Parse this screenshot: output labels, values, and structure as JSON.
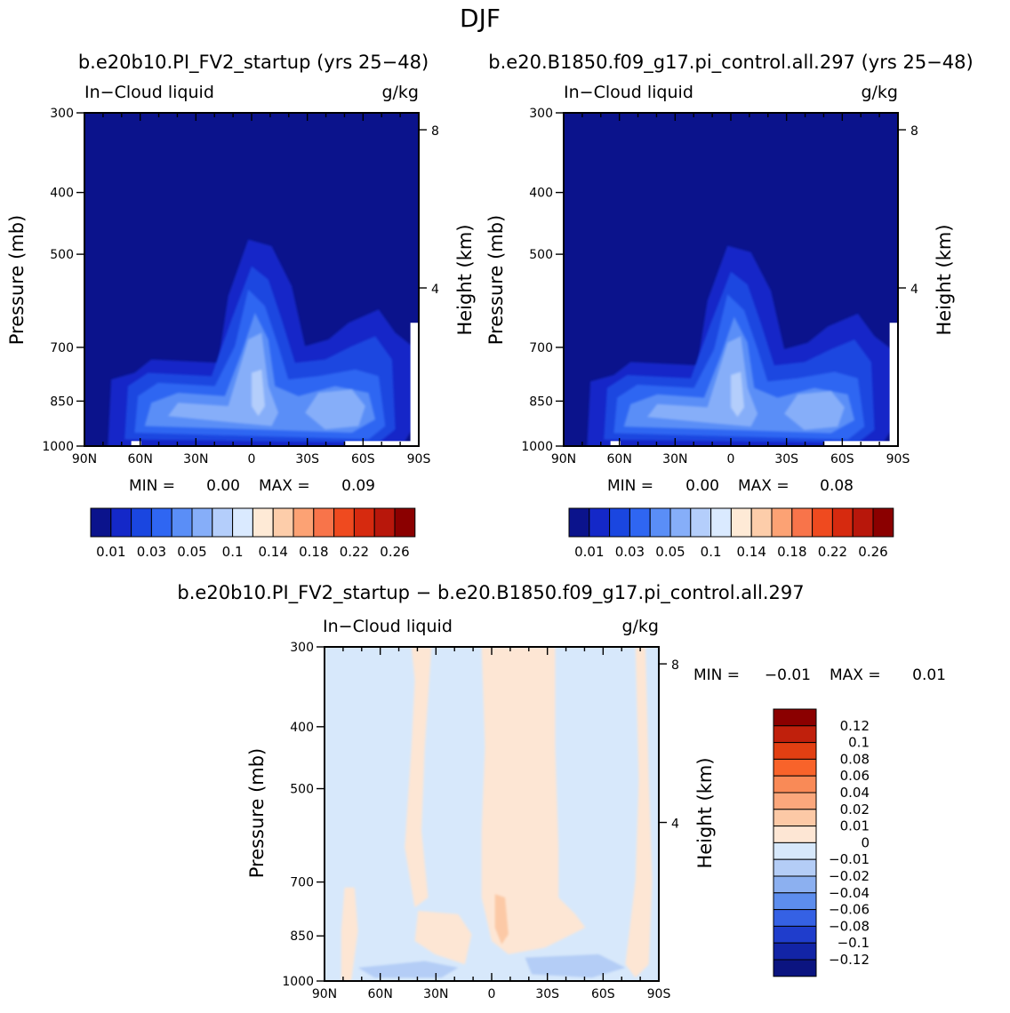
{
  "figure": {
    "season_title": "DJF",
    "diff_panel_title": "b.e20b10.PI_FV2_startup  −  b.e20.B1850.f09_g17.pi_control.all.297"
  },
  "chart_data": [
    {
      "type": "heatmap",
      "title": "b.e20b10.PI_FV2_startup (yrs 25−48)",
      "left_label": "In−Cloud liquid",
      "right_label": "g/kg",
      "xlabel": "",
      "ylabel": "Pressure (mb)",
      "ylabel_right": "Height (km)",
      "x_ticks": [
        "90N",
        "60N",
        "30N",
        "0",
        "30S",
        "60S",
        "90S"
      ],
      "y_ticks": [
        300,
        400,
        500,
        700,
        850,
        1000
      ],
      "y_ticks_right": [
        8,
        4
      ],
      "y_scale": "log",
      "ylim": [
        1000,
        300
      ],
      "xlim": [
        90,
        -90
      ],
      "min_label": "MIN =",
      "min_value": "0.00",
      "max_label": "MAX =",
      "max_value": "0.09",
      "colorbar_labels": [
        "0.01",
        "0.03",
        "0.05",
        "0.1",
        "0.14",
        "0.18",
        "0.22",
        "0.26"
      ],
      "approx_max_value": 0.09
    },
    {
      "type": "heatmap",
      "title": "b.e20.B1850.f09_g17.pi_control.all.297 (yrs 25−48)",
      "left_label": "In−Cloud liquid",
      "right_label": "g/kg",
      "xlabel": "",
      "ylabel": "Pressure (mb)",
      "ylabel_right": "Height (km)",
      "x_ticks": [
        "90N",
        "60N",
        "30N",
        "0",
        "30S",
        "60S",
        "90S"
      ],
      "y_ticks": [
        300,
        400,
        500,
        700,
        850,
        1000
      ],
      "y_ticks_right": [
        8,
        4
      ],
      "y_scale": "log",
      "ylim": [
        1000,
        300
      ],
      "xlim": [
        90,
        -90
      ],
      "min_label": "MIN =",
      "min_value": "0.00",
      "max_label": "MAX =",
      "max_value": "0.08",
      "colorbar_labels": [
        "0.01",
        "0.03",
        "0.05",
        "0.1",
        "0.14",
        "0.18",
        "0.22",
        "0.26"
      ],
      "approx_max_value": 0.08
    },
    {
      "type": "heatmap",
      "title": "",
      "left_label": "In−Cloud liquid",
      "right_label": "g/kg",
      "xlabel": "",
      "ylabel": "Pressure (mb)",
      "ylabel_right": "Height (km)",
      "x_ticks": [
        "90N",
        "60N",
        "30N",
        "0",
        "30S",
        "60S",
        "90S"
      ],
      "y_ticks": [
        300,
        400,
        500,
        700,
        850,
        1000
      ],
      "y_ticks_right": [
        8,
        4
      ],
      "y_scale": "log",
      "ylim": [
        1000,
        300
      ],
      "xlim": [
        90,
        -90
      ],
      "min_label": "MIN =",
      "min_value": "−0.01",
      "max_label": "MAX =",
      "max_value": "0.01",
      "colorbar_labels": [
        "0.12",
        "0.1",
        "0.08",
        "0.06",
        "0.04",
        "0.02",
        "0.01",
        "0",
        "−0.01",
        "−0.02",
        "−0.04",
        "−0.06",
        "−0.08",
        "−0.1",
        "−0.12"
      ]
    }
  ],
  "colors": {
    "abs_scale": [
      "#0b138c",
      "#1428c8",
      "#1a46e0",
      "#2f66f2",
      "#5a8ef7",
      "#86aef9",
      "#b4cefb",
      "#daeaff",
      "#feead6",
      "#fdcdaa",
      "#fca274",
      "#f8744a",
      "#ef4a1f",
      "#d62a0f",
      "#b8170b",
      "#8b0000"
    ],
    "diff_scale": [
      "#8b0000",
      "#c0200c",
      "#e23f12",
      "#f8632a",
      "#f98a57",
      "#fba77c",
      "#fcc9a6",
      "#fde6d4",
      "#d7e8fb",
      "#b4cdf6",
      "#8cb0f0",
      "#5d8ded",
      "#3561e4",
      "#1f3dcc",
      "#1224a6",
      "#0b1480"
    ]
  }
}
